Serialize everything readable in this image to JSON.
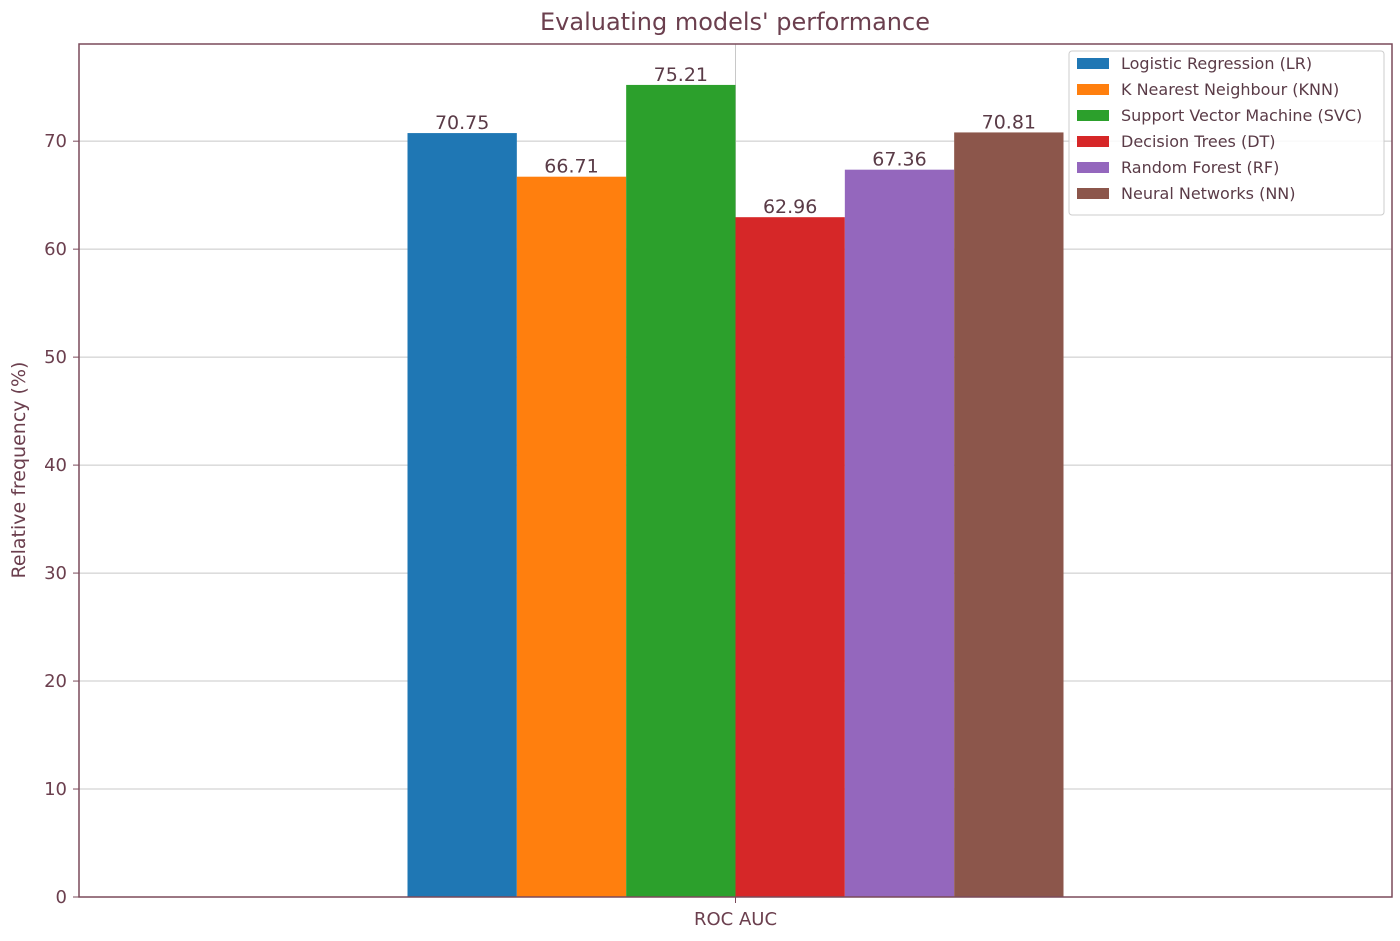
{
  "chart_data": {
    "type": "bar",
    "title": "Evaluating models' performance",
    "xlabel": "",
    "ylabel": "Relative frequency (%)",
    "categories": [
      "ROC AUC"
    ],
    "ylim": [
      0,
      79
    ],
    "yticks": [
      0,
      10,
      20,
      30,
      40,
      50,
      60,
      70
    ],
    "grid": true,
    "legend_position": "top-right",
    "series": [
      {
        "name": "Logistic Regression (LR)",
        "values": [
          70.75
        ],
        "label": "70.75",
        "color": "#1f77b4"
      },
      {
        "name": "K Nearest Neighbour (KNN)",
        "values": [
          66.71
        ],
        "label": "66.71",
        "color": "#ff7f0e"
      },
      {
        "name": "Support Vector Machine (SVC)",
        "values": [
          75.21
        ],
        "label": "75.21",
        "color": "#2ca02c"
      },
      {
        "name": "Decision Trees (DT)",
        "values": [
          62.96
        ],
        "label": "62.96",
        "color": "#d62728"
      },
      {
        "name": "Random Forest (RF)",
        "values": [
          67.36
        ],
        "label": "67.36",
        "color": "#9467bd"
      },
      {
        "name": "Neural Networks (NN)",
        "values": [
          70.81
        ],
        "label": "70.81",
        "color": "#8c564b"
      }
    ]
  }
}
